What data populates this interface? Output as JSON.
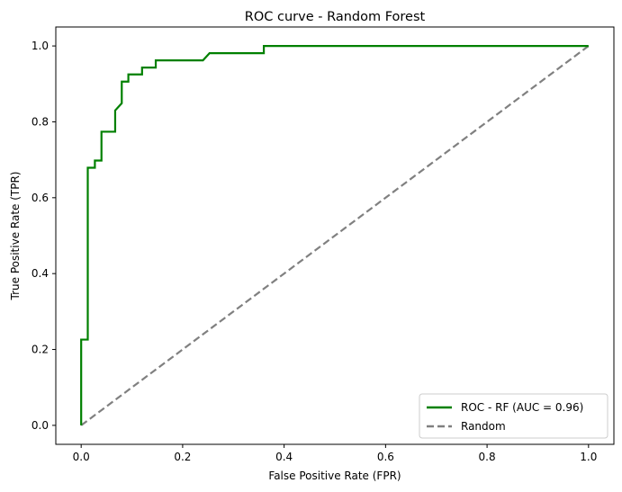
{
  "chart_data": {
    "type": "line",
    "title": "ROC curve - Random Forest",
    "xlabel": "False Positive Rate (FPR)",
    "ylabel": "True Positive Rate (TPR)",
    "xlim": [
      -0.05,
      1.05
    ],
    "ylim": [
      -0.05,
      1.05
    ],
    "xticks": [
      "0.0",
      "0.2",
      "0.4",
      "0.6",
      "0.8",
      "1.0"
    ],
    "yticks": [
      "0.0",
      "0.2",
      "0.4",
      "0.6",
      "0.8",
      "1.0"
    ],
    "grid": false,
    "legend_position": "lower-right",
    "series": [
      {
        "name": "ROC - RF (AUC = 0.96)",
        "color": "#008000",
        "style": "solid",
        "x": [
          0.0,
          0.0,
          0.0,
          0.013,
          0.013,
          0.027,
          0.027,
          0.04,
          0.04,
          0.067,
          0.067,
          0.08,
          0.08,
          0.093,
          0.093,
          0.12,
          0.12,
          0.147,
          0.147,
          0.24,
          0.253,
          0.36,
          0.36,
          1.0
        ],
        "y": [
          0.0,
          0.226,
          0.226,
          0.226,
          0.679,
          0.679,
          0.698,
          0.698,
          0.774,
          0.774,
          0.83,
          0.849,
          0.906,
          0.906,
          0.925,
          0.925,
          0.943,
          0.943,
          0.962,
          0.962,
          0.981,
          0.981,
          1.0,
          1.0
        ]
      },
      {
        "name": "Random",
        "color": "#808080",
        "style": "dashed",
        "x": [
          0.0,
          1.0
        ],
        "y": [
          0.0,
          1.0
        ]
      }
    ]
  }
}
